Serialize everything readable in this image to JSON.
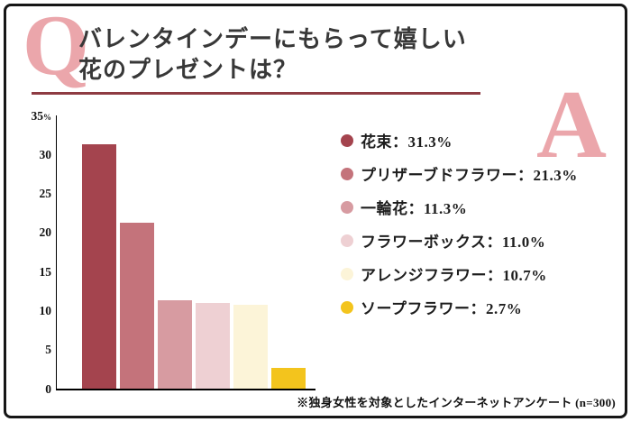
{
  "header": {
    "q_label": "Q",
    "a_label": "A",
    "title_line1": "バレンタインデーにもらって嬉しい",
    "title_line2": "花のプレゼントは？"
  },
  "footnote": "※独身女性を対象としたインターネットアンケート (n=300)",
  "colors": {
    "accent_letter": "#eba6ab",
    "title_text": "#383838",
    "underline": "#8e3b42",
    "axis": "#000000",
    "frame_border": "#161616"
  },
  "chart_data": {
    "type": "bar",
    "title": "バレンタインデーにもらって嬉しい花のプレゼントは？",
    "categories": [
      "花束",
      "プリザーブドフラワー",
      "一輪花",
      "フラワーボックス",
      "アレンジフラワー",
      "ソープフラワー"
    ],
    "values": [
      31.3,
      21.3,
      11.3,
      11.0,
      10.7,
      2.7
    ],
    "bar_colors": [
      "#a4444e",
      "#c4737b",
      "#d79ba1",
      "#eed0d3",
      "#fcf4d8",
      "#f3c41d"
    ],
    "xlabel": "",
    "ylabel": "",
    "ylim": [
      0,
      35
    ],
    "ytick_step": 5,
    "y_unit": "%",
    "grid": false,
    "legend_position": "right",
    "legend_separator": "：",
    "legend": [
      {
        "label": "花束",
        "value_text": "31.3%",
        "color": "#a4444e"
      },
      {
        "label": "プリザーブドフラワー",
        "value_text": "21.3%",
        "color": "#c4737b"
      },
      {
        "label": "一輪花",
        "value_text": "11.3%",
        "color": "#d79ba1"
      },
      {
        "label": "フラワーボックス",
        "value_text": "11.0%",
        "color": "#eed0d3"
      },
      {
        "label": "アレンジフラワー",
        "value_text": "10.7%",
        "color": "#fcf4d8"
      },
      {
        "label": "ソープフラワー",
        "value_text": "2.7%",
        "color": "#f3c41d"
      }
    ]
  }
}
